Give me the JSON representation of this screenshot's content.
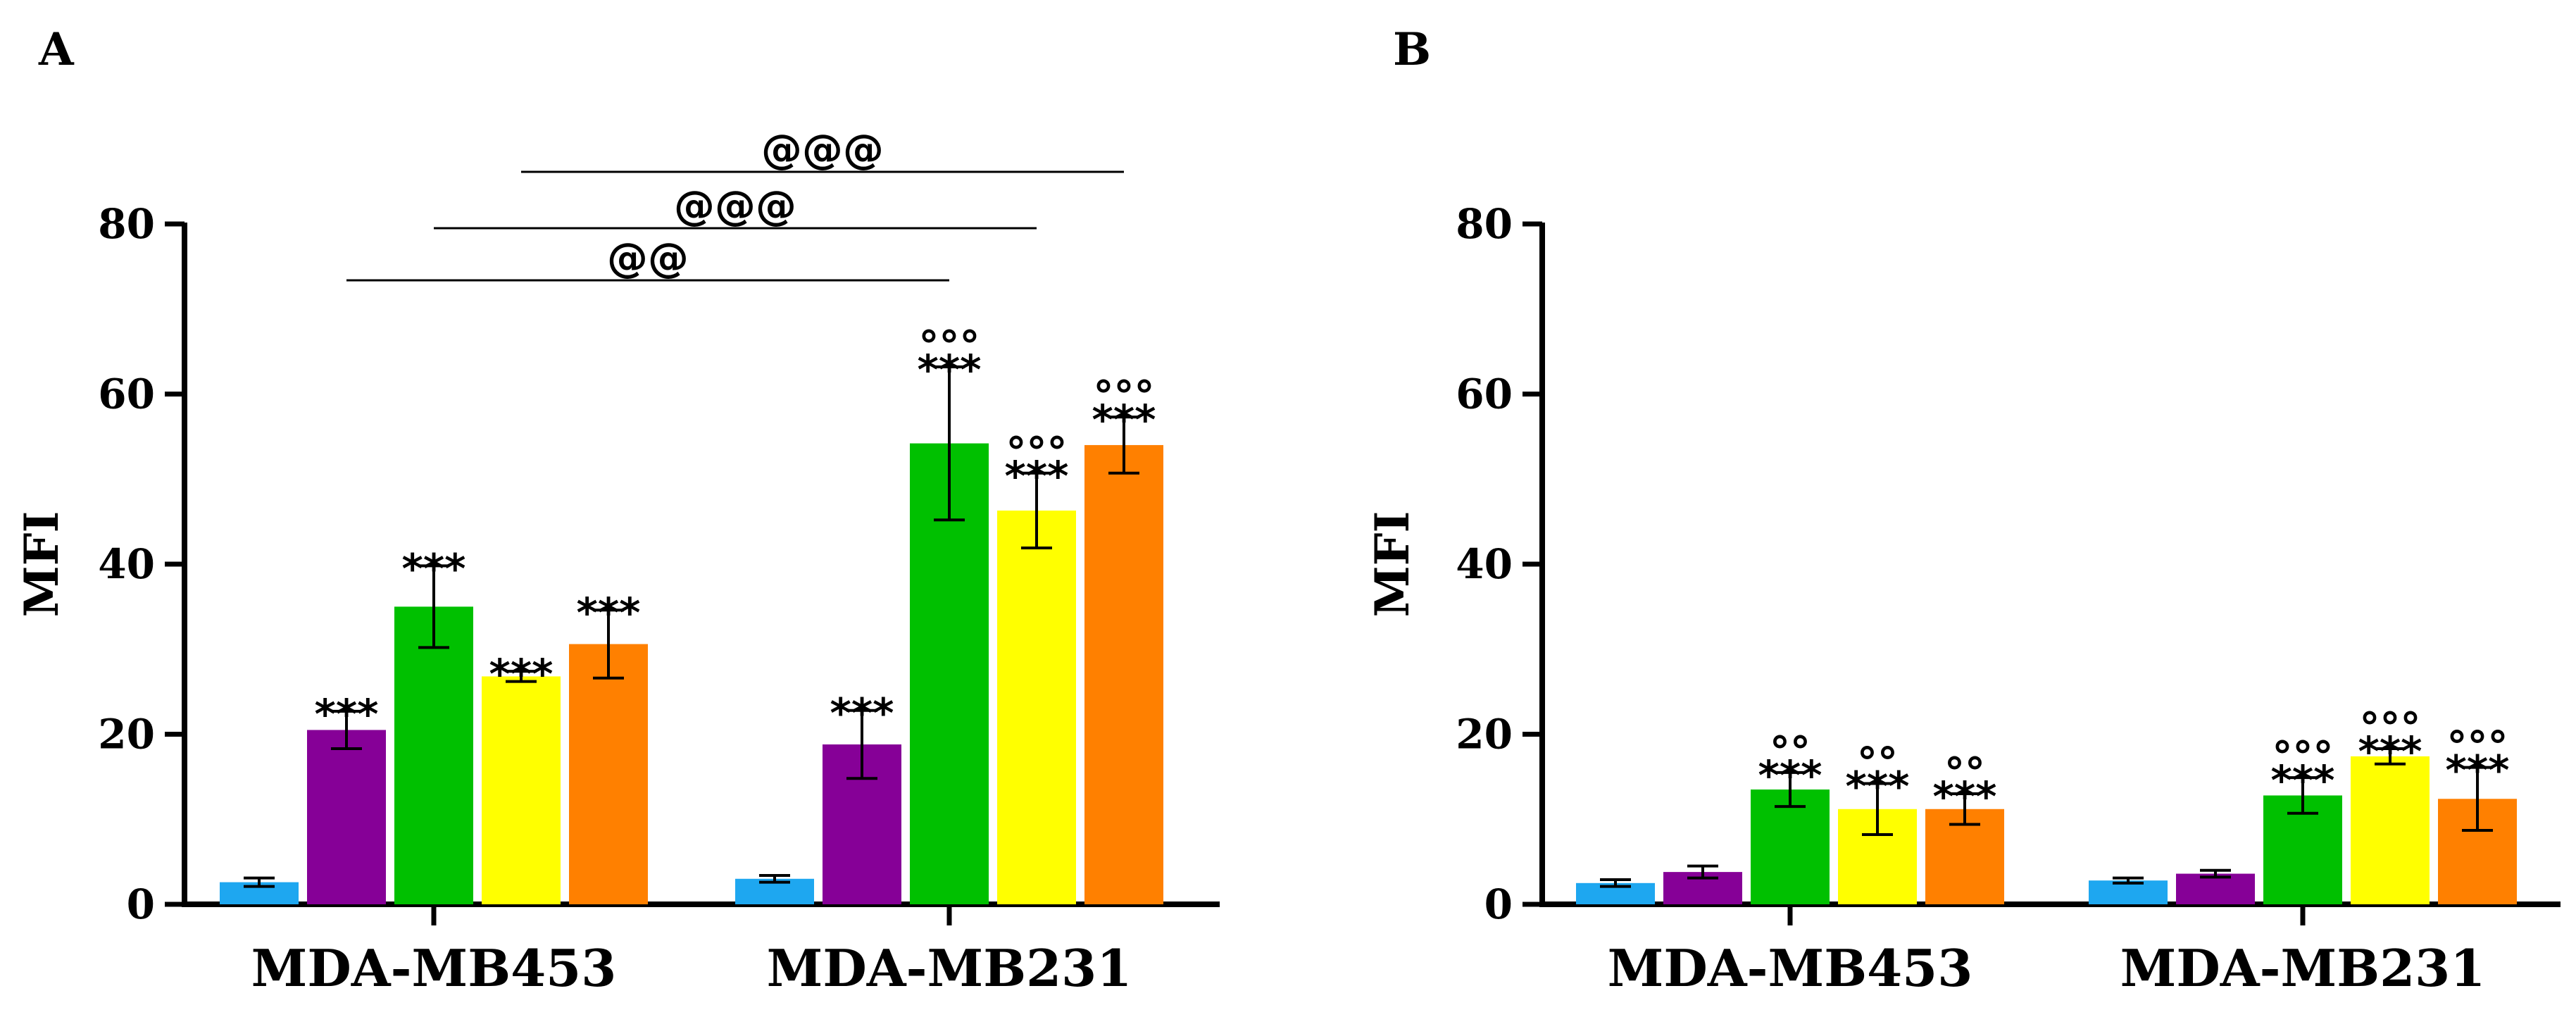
{
  "chart_data": [
    {
      "type": "bar",
      "panel": "A",
      "ylabel": "MFI",
      "ylim": [
        0,
        80
      ],
      "yticks": [
        "0",
        "20",
        "40",
        "60",
        "80"
      ],
      "categories": [
        "MDA-MB453",
        "MDA-MB231"
      ],
      "series": [
        {
          "color": "#1EA7F0",
          "values": [
            2.6,
            3.0
          ],
          "errors": [
            0.5,
            0.4
          ],
          "stars": [
            "",
            ""
          ],
          "circles": [
            "",
            ""
          ]
        },
        {
          "color": "#860097",
          "values": [
            20.5,
            18.8
          ],
          "errors": [
            2.2,
            4.0
          ],
          "stars": [
            "***",
            "***"
          ],
          "circles": [
            "",
            ""
          ]
        },
        {
          "color": "#00C000",
          "values": [
            35.0,
            54.2
          ],
          "errors": [
            4.8,
            9.0
          ],
          "stars": [
            "***",
            "***"
          ],
          "circles": [
            "",
            "°°°"
          ]
        },
        {
          "color": "#FFFF00",
          "values": [
            26.8,
            46.3
          ],
          "errors": [
            0.6,
            4.4
          ],
          "stars": [
            "***",
            "***"
          ],
          "circles": [
            "",
            "°°°"
          ]
        },
        {
          "color": "#FF8000",
          "values": [
            30.6,
            54.0
          ],
          "errors": [
            4.0,
            3.3
          ],
          "stars": [
            "***",
            "***"
          ],
          "circles": [
            "",
            "°°°"
          ]
        }
      ],
      "brackets": [
        {
          "from": [
            0,
            1
          ],
          "to": [
            1,
            2
          ],
          "label": "@@"
        },
        {
          "from": [
            0,
            2
          ],
          "to": [
            1,
            3
          ],
          "label": "@@@"
        },
        {
          "from": [
            0,
            3
          ],
          "to": [
            1,
            4
          ],
          "label": "@@@"
        }
      ]
    },
    {
      "type": "bar",
      "panel": "B",
      "ylabel": "MFI",
      "ylim": [
        0,
        80
      ],
      "yticks": [
        "0",
        "20",
        "40",
        "60",
        "80"
      ],
      "categories": [
        "MDA-MB453",
        "MDA-MB231"
      ],
      "series": [
        {
          "color": "#1EA7F0",
          "values": [
            2.5,
            2.8
          ],
          "errors": [
            0.4,
            0.3
          ],
          "stars": [
            "",
            ""
          ],
          "circles": [
            "",
            ""
          ]
        },
        {
          "color": "#860097",
          "values": [
            3.8,
            3.6
          ],
          "errors": [
            0.7,
            0.4
          ],
          "stars": [
            "",
            ""
          ],
          "circles": [
            "",
            ""
          ]
        },
        {
          "color": "#00C000",
          "values": [
            13.5,
            12.8
          ],
          "errors": [
            2.0,
            2.1
          ],
          "stars": [
            "***",
            "***"
          ],
          "circles": [
            "°°",
            "°°°"
          ]
        },
        {
          "color": "#FFFF00",
          "values": [
            11.2,
            17.4
          ],
          "errors": [
            3.0,
            0.9
          ],
          "stars": [
            "***",
            "***"
          ],
          "circles": [
            "°°",
            "°°°"
          ]
        },
        {
          "color": "#FF8000",
          "values": [
            11.2,
            12.4
          ],
          "errors": [
            1.8,
            3.7
          ],
          "stars": [
            "***",
            "***"
          ],
          "circles": [
            "°°",
            "°°°"
          ]
        }
      ],
      "brackets": []
    }
  ]
}
